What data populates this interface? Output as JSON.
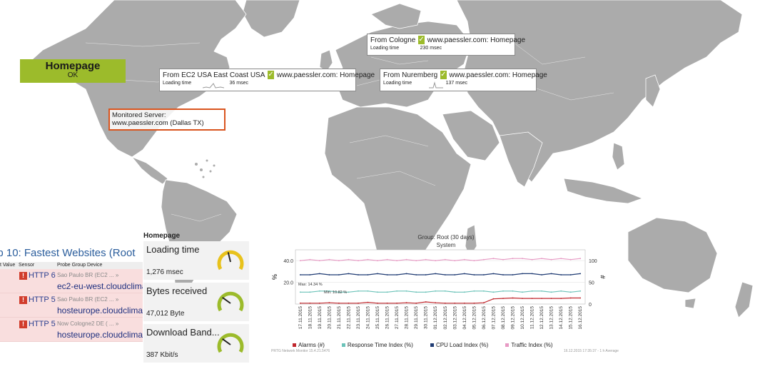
{
  "status": {
    "title": "Homepage",
    "state": "OK"
  },
  "probes": [
    {
      "from": "From Cologne",
      "site": "www.paessler.com: Homepage",
      "metric": "Loading time",
      "value": "230 msec"
    },
    {
      "from": "From EC2 USA East Coast USA",
      "site": "www.paessler.com: Homepage",
      "metric": "Loading time",
      "value": "36 msec"
    },
    {
      "from": "From Nuremberg",
      "site": "www.paessler.com: Homepage",
      "metric": "Loading time",
      "value": "137 msec"
    }
  ],
  "monitored": {
    "label": "Monitored Server:",
    "host": "www.paessler.com (Dallas TX)"
  },
  "top10": {
    "title": "op 10: Fastest Websites (Root",
    "headers": [
      "t Value",
      "Sensor",
      "Probe Group Device"
    ],
    "rows": [
      {
        "sensor": "HTTP 6",
        "probe_group": "Sao Paulo BR (EC2 ... »",
        "device": "ec2-eu-west.cloudclima"
      },
      {
        "sensor": "HTTP 5",
        "probe_group": "Sao Paulo BR (EC2 ... »",
        "device": "hosteurope.cloudclimat"
      },
      {
        "sensor": "HTTP 5",
        "probe_group": "Now Cologne2 DE ( ... »",
        "device": "hosteurope.cloudclimat"
      }
    ]
  },
  "gadgets": {
    "title": "Homepage",
    "items": [
      {
        "label": "Loading time",
        "value": "1,276 msec",
        "level": 0.45,
        "color": "#e8c21c"
      },
      {
        "label": "Bytes received",
        "value": "47,012 Byte",
        "level": 0.3,
        "color": "#9cbb2b"
      },
      {
        "label": "Download Band...",
        "value": "387 Kbit/s",
        "level": 0.3,
        "color": "#9cbb2b"
      }
    ]
  },
  "chart_data": {
    "type": "line",
    "title": "Group: Root (30 days)",
    "subtitle": "System",
    "ylabel": "%",
    "y2label": "#",
    "ylim": [
      0,
      50
    ],
    "y2lim": [
      0,
      125
    ],
    "yticks": [
      "40.0",
      "20.0"
    ],
    "y2ticks": [
      "100",
      "50",
      "0"
    ],
    "categories": [
      "17.11.2015",
      "18.11.2015",
      "19.11.2015",
      "20.11.2015",
      "21.11.2015",
      "22.11.2015",
      "23.11.2015",
      "24.11.2015",
      "25.11.2015",
      "26.11.2015",
      "27.11.2015",
      "28.11.2015",
      "29.11.2015",
      "30.11.2015",
      "01.12.2015",
      "02.12.2015",
      "03.12.2015",
      "04.12.2015",
      "05.12.2015",
      "06.12.2015",
      "07.12.2015",
      "08.12.2015",
      "09.12.2015",
      "10.12.2015",
      "11.12.2015",
      "12.12.2015",
      "13.12.2015",
      "14.12.2015",
      "15.12.2015",
      "16.12.2015"
    ],
    "annotations": [
      "Max: 14.34 %",
      "Min: 10.82 %"
    ],
    "series": [
      {
        "name": "Alarms (#)",
        "color": "#c0272d",
        "values": [
          2,
          2,
          2,
          3,
          2,
          2,
          2,
          4,
          2,
          2,
          2,
          3,
          2,
          5,
          3,
          2,
          2,
          2,
          2,
          3,
          12,
          13,
          14,
          13,
          13,
          13,
          13,
          13,
          14,
          14
        ]
      },
      {
        "name": "Response Time Index (%)",
        "color": "#6cc3b9",
        "values": [
          11,
          11,
          12,
          12,
          11,
          11,
          12,
          12,
          11,
          11,
          12,
          12,
          11,
          11,
          12,
          12,
          11,
          11,
          12,
          12,
          11,
          12,
          12,
          11,
          12,
          12,
          11,
          12,
          11,
          12
        ]
      },
      {
        "name": "CPU Load Index (%)",
        "color": "#1f3b73",
        "values": [
          27,
          27,
          28,
          27,
          27,
          28,
          27,
          27,
          28,
          27,
          27,
          28,
          27,
          27,
          28,
          27,
          27,
          28,
          27,
          27,
          28,
          27,
          27,
          28,
          28,
          27,
          28,
          27,
          27,
          28
        ]
      },
      {
        "name": "Traffic Index (%)",
        "color": "#e79ac4",
        "values": [
          40,
          41,
          40,
          41,
          40,
          41,
          40,
          41,
          40,
          41,
          40,
          41,
          40,
          41,
          40,
          41,
          40,
          41,
          40,
          41,
          42,
          41,
          42,
          42,
          41,
          42,
          41,
          42,
          41,
          42
        ]
      }
    ],
    "footer_left": "PRTG Network Monitor 15.4.21.5476",
    "footer_right": "16.12.2015 17:35:37 - 1 h Average"
  }
}
